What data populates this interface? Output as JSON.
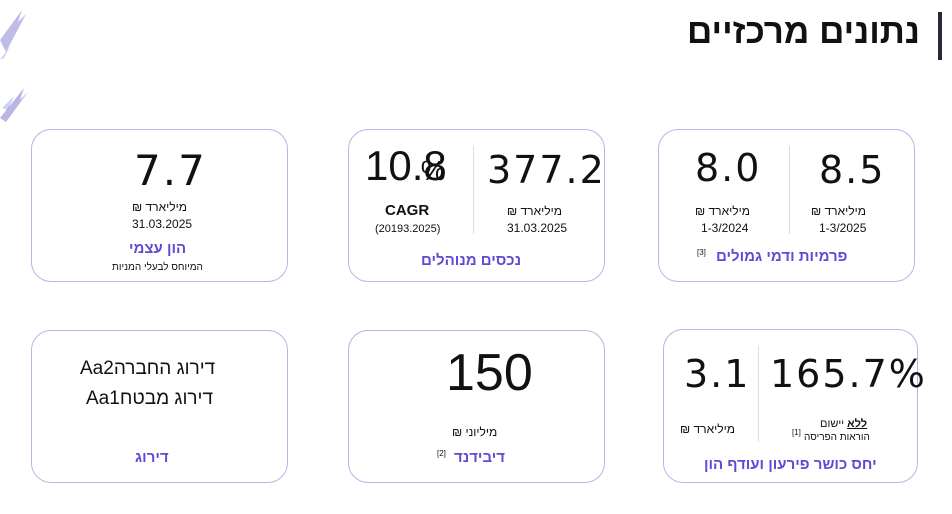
{
  "page": {
    "title": "נתונים מרכזיים"
  },
  "cards": {
    "equity": {
      "value": "7.7",
      "unit": "מיליארד ₪",
      "date": "31.03.2025",
      "label": "הון עצמי",
      "sublabel": "המיוחס לבעלי המניות"
    },
    "aum": {
      "cagr_value": "10.8",
      "cagr_pct": "%",
      "cagr_label": "CAGR",
      "cagr_range": "(20193.2025)",
      "value": "377.2",
      "unit": "מיליארד ₪",
      "date": "31.03.2025",
      "label": "נכסים מנוהלים"
    },
    "premiums": {
      "value_left": "8.0",
      "unit_left": "מיליארד ₪",
      "period_left": "1-3/2024",
      "value_right": "8.5",
      "unit_right": "מיליארד ₪",
      "period_right": "1-3/2025",
      "label": "פרמיות ודמי גמולים",
      "footnote": "[3]"
    },
    "rating": {
      "line1": "דירוג החברהAa2",
      "line2": "דירוג מבטחAa1",
      "label": "דירוג"
    },
    "dividend": {
      "value": "150",
      "unit": "מיליוני ₪",
      "label": "דיבידנד",
      "footnote": "[2]"
    },
    "solvency": {
      "value_left": "3.1",
      "unit_left": "מיליארד ₪",
      "value_right": "165.7%",
      "note_bold": "ללא",
      "note_rest": " יישום",
      "note_line2": "הוראות הפריסה",
      "footnote": "[1]",
      "label": "יחס כושר פירעון ועודף הון"
    }
  },
  "colors": {
    "accent": "#5b4bd6",
    "border": "#b9b3e8",
    "deco": "#8a86d6"
  }
}
